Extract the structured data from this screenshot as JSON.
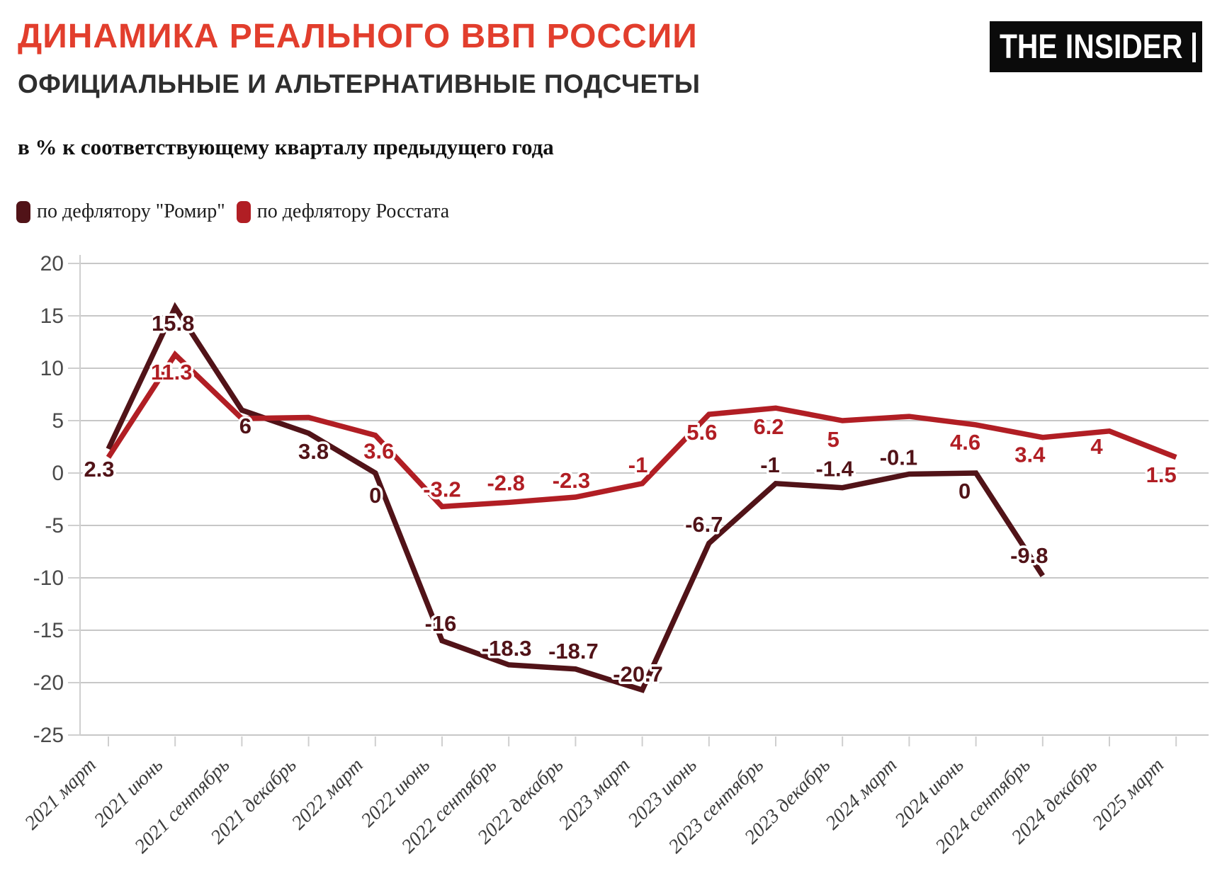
{
  "header": {
    "title": "ДИНАМИКА РЕАЛЬНОГО ВВП РОССИИ",
    "subtitle": "ОФИЦИАЛЬНЫЕ И АЛЬТЕРНАТИВНЫЕ ПОДСЧЕТЫ",
    "logo": "THE INSIDER"
  },
  "note": "в % к соответствующему кварталу предыдущего года",
  "colors": {
    "title": "#e23e2d",
    "subtitle": "#2e2e2e",
    "note": "#111111",
    "logo_bg": "#0b0b0b",
    "grid": "#c7c7c7",
    "axis": "#cfcfcf",
    "ytick_text": "#4a4a4a",
    "xtick_text": "#3c3c3c",
    "romir": "#511318",
    "rosstat": "#b11e24"
  },
  "legend": [
    {
      "label": "по дефлятору \"Ромир\"",
      "color": "#511318"
    },
    {
      "label": "по дефлятору Росстата",
      "color": "#b11e24"
    }
  ],
  "chart_data": {
    "type": "line",
    "title": "ДИНАМИКА РЕАЛЬНОГО ВВП РОССИИ — ОФИЦИАЛЬНЫЕ И АЛЬТЕРНАТИВНЫЕ ПОДСЧЕТЫ",
    "ylabel": "в % к соответствующему кварталу предыдущего года",
    "xlabel": "",
    "grid": true,
    "legend_position": "top-left",
    "ylim": [
      -25,
      20
    ],
    "ytick_step": 5,
    "yticks": [
      20,
      15,
      10,
      5,
      0,
      -5,
      -10,
      -15,
      -20,
      -25
    ],
    "categories": [
      "2021 март",
      "2021 июнь",
      "2021 сентябрь",
      "2021 декабрь",
      "2022 март",
      "2022 июнь",
      "2022 сентябрь",
      "2022 декабрь",
      "2023 март",
      "2023 июнь",
      "2023 сентябрь",
      "2023 декабрь",
      "2024 март",
      "2024 июнь",
      "2024 сентябрь",
      "2024 декабрь",
      "2025 март"
    ],
    "series": [
      {
        "name": "по дефлятору \"Ромир\"",
        "color": "#511318",
        "values": [
          2.3,
          15.8,
          6,
          3.8,
          0,
          -16,
          -18.3,
          -18.7,
          -20.7,
          -6.7,
          -1,
          -1.4,
          -0.1,
          0,
          -9.8,
          null,
          null
        ],
        "labels": [
          "2.3",
          "15.8",
          "6",
          "3.8",
          "0",
          "-16",
          "-18.3",
          "-18.7",
          "-20.7",
          "-6.7",
          "-1",
          "-1.4",
          "-0.1",
          "0",
          "-9.8",
          null,
          null
        ],
        "label_offsets": [
          [
            -13,
            39
          ],
          [
            -3,
            33
          ],
          [
            5,
            33
          ],
          [
            7,
            36
          ],
          [
            0,
            42
          ],
          [
            -2,
            -14
          ],
          [
            -3,
            -13
          ],
          [
            -3,
            -15
          ],
          [
            -6,
            -12
          ],
          [
            -7,
            -16
          ],
          [
            -8,
            -16
          ],
          [
            -11,
            -16
          ],
          [
            -15,
            -13
          ],
          [
            -16,
            36
          ],
          [
            -19,
            -18
          ],
          null,
          null
        ]
      },
      {
        "name": "по дефлятору Росстата",
        "color": "#b11e24",
        "values": [
          1.5,
          11.3,
          5.2,
          5.3,
          3.6,
          -3.2,
          -2.8,
          -2.3,
          -1,
          5.6,
          6.2,
          5,
          5.4,
          4.6,
          3.4,
          4,
          1.5
        ],
        "labels": [
          null,
          "11.3",
          null,
          null,
          "3.6",
          "-3.2",
          "-2.8",
          "-2.3",
          "-1",
          "5.6",
          "6.2",
          "5",
          null,
          "4.6",
          "3.4",
          "4",
          "1.5"
        ],
        "label_offsets": [
          null,
          [
            -5,
            35
          ],
          null,
          null,
          [
            5,
            33
          ],
          [
            0,
            -14
          ],
          [
            -4,
            -17
          ],
          [
            -6,
            -13
          ],
          [
            -6,
            -16
          ],
          [
            -10,
            36
          ],
          [
            -10,
            37
          ],
          [
            -13,
            37
          ],
          null,
          [
            -15,
            35
          ],
          [
            -18,
            35
          ],
          [
            -18,
            32
          ],
          [
            -21,
            35
          ]
        ]
      }
    ]
  }
}
